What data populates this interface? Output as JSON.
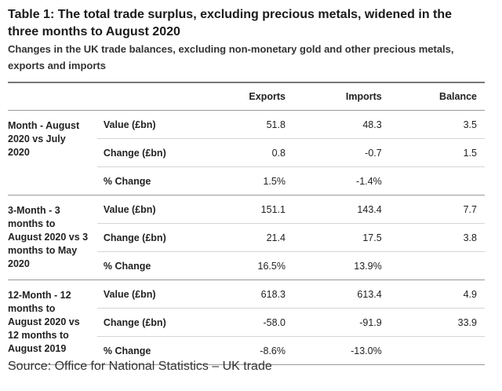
{
  "title": "Table 1: The total trade surplus, excluding precious metals, widened in the three months to August 2020",
  "subtitle": "Changes in the UK trade balances, excluding non-monetary gold and other precious metals, exports and imports",
  "columns": [
    "Exports",
    "Imports",
    "Balance"
  ],
  "groups": [
    {
      "label": "Month - August 2020 vs July 2020",
      "rows": [
        {
          "measure": "Value (£bn)",
          "exports": "51.8",
          "imports": "48.3",
          "balance": "3.5"
        },
        {
          "measure": "Change (£bn)",
          "exports": "0.8",
          "imports": "-0.7",
          "balance": "1.5"
        },
        {
          "measure": "% Change",
          "exports": "1.5%",
          "imports": "-1.4%",
          "balance": ""
        }
      ]
    },
    {
      "label": "3-Month - 3 months to August 2020 vs 3 months to May 2020",
      "rows": [
        {
          "measure": "Value (£bn)",
          "exports": "151.1",
          "imports": "143.4",
          "balance": "7.7"
        },
        {
          "measure": "Change (£bn)",
          "exports": "21.4",
          "imports": "17.5",
          "balance": "3.8"
        },
        {
          "measure": "% Change",
          "exports": "16.5%",
          "imports": "13.9%",
          "balance": ""
        }
      ]
    },
    {
      "label": "12-Month - 12 months to August 2020 vs 12 months to August 2019",
      "rows": [
        {
          "measure": "Value (£bn)",
          "exports": "618.3",
          "imports": "613.4",
          "balance": "4.9"
        },
        {
          "measure": "Change (£bn)",
          "exports": "-58.0",
          "imports": "-91.9",
          "balance": "33.9"
        },
        {
          "measure": "% Change",
          "exports": "-8.6%",
          "imports": "-13.0%",
          "balance": ""
        }
      ]
    }
  ],
  "source": "Source: Office for National Statistics – UK trade"
}
